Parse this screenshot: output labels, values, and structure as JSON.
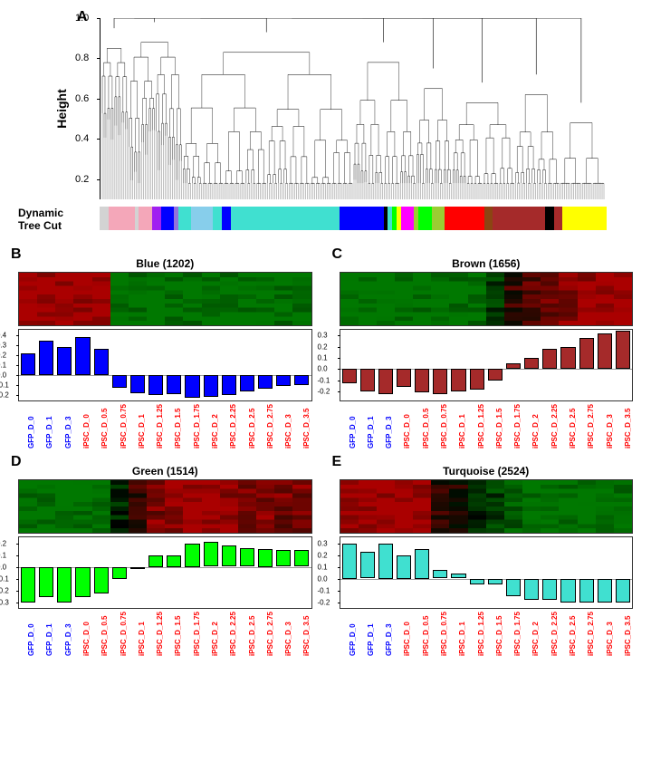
{
  "panelA": {
    "label": "A",
    "y_axis_label": "Height",
    "y_ticks": [
      0.2,
      0.4,
      0.6,
      0.8,
      1.0
    ],
    "y_range": [
      0.1,
      1.0
    ],
    "tree_cut_label": "Dynamic\nTree Cut",
    "tree_cut_segments": [
      {
        "color": "#d3d3d3",
        "width": 2
      },
      {
        "color": "#f4a7b9",
        "width": 6
      },
      {
        "color": "#d3d3d3",
        "width": 1
      },
      {
        "color": "#f4a7b9",
        "width": 3
      },
      {
        "color": "#a020f0",
        "width": 2
      },
      {
        "color": "#0000ff",
        "width": 3
      },
      {
        "color": "#9370db",
        "width": 1
      },
      {
        "color": "#40e0d0",
        "width": 3
      },
      {
        "color": "#87ceeb",
        "width": 5
      },
      {
        "color": "#40e0d0",
        "width": 2
      },
      {
        "color": "#0000ff",
        "width": 2
      },
      {
        "color": "#40e0d0",
        "width": 25
      },
      {
        "color": "#0000ff",
        "width": 10
      },
      {
        "color": "#000000",
        "width": 1
      },
      {
        "color": "#40e0d0",
        "width": 1
      },
      {
        "color": "#00ff00",
        "width": 1
      },
      {
        "color": "#ffff00",
        "width": 1
      },
      {
        "color": "#ff00ff",
        "width": 3
      },
      {
        "color": "#9acd32",
        "width": 1
      },
      {
        "color": "#00ff00",
        "width": 3
      },
      {
        "color": "#9acd32",
        "width": 3
      },
      {
        "color": "#ff0000",
        "width": 9
      },
      {
        "color": "#8b4513",
        "width": 2
      },
      {
        "color": "#a52a2a",
        "width": 12
      },
      {
        "color": "#000000",
        "width": 2
      },
      {
        "color": "#a52a2a",
        "width": 2
      },
      {
        "color": "#ffff00",
        "width": 10
      }
    ]
  },
  "samples": [
    {
      "label": "GFP_D_0",
      "type": "gfp"
    },
    {
      "label": "GFP_D_1",
      "type": "gfp"
    },
    {
      "label": "GFP_D_3",
      "type": "gfp"
    },
    {
      "label": "iPSC_D_0",
      "type": "ipsc"
    },
    {
      "label": "iPSC_D_0.5",
      "type": "ipsc"
    },
    {
      "label": "iPSC_D_0.75",
      "type": "ipsc"
    },
    {
      "label": "iPSC_D_1",
      "type": "ipsc"
    },
    {
      "label": "iPSC_D_1.25",
      "type": "ipsc"
    },
    {
      "label": "iPSC_D_1.5",
      "type": "ipsc"
    },
    {
      "label": "iPSC_D_1.75",
      "type": "ipsc"
    },
    {
      "label": "iPSC_D_2",
      "type": "ipsc"
    },
    {
      "label": "iPSC_D_2.25",
      "type": "ipsc"
    },
    {
      "label": "iPSC_D_2.5",
      "type": "ipsc"
    },
    {
      "label": "iPSC_D_2.75",
      "type": "ipsc"
    },
    {
      "label": "iPSC_D_3",
      "type": "ipsc"
    },
    {
      "label": "iPSC_D_3.5",
      "type": "ipsc"
    }
  ],
  "sample_colors": {
    "gfp": "#0000ff",
    "ipsc": "#ff0000"
  },
  "modules": [
    {
      "id": "B",
      "title": "Blue (1202)",
      "bar_color": "#0000ff",
      "y_ticks": [
        -0.2,
        -0.1,
        0,
        0.1,
        0.2,
        0.3,
        0.4
      ],
      "y_range": [
        -0.25,
        0.45
      ],
      "values": [
        0.22,
        0.34,
        0.28,
        0.38,
        0.26,
        -0.12,
        -0.18,
        -0.2,
        -0.19,
        -0.22,
        -0.21,
        -0.2,
        -0.16,
        -0.13,
        -0.11,
        -0.1
      ],
      "heatmap_bias": [
        1,
        1,
        1,
        1,
        1,
        -1,
        -1,
        -1,
        -1,
        -1,
        -1,
        -1,
        -1,
        -1,
        -1,
        -1
      ]
    },
    {
      "id": "C",
      "title": "Brown (1656)",
      "bar_color": "#a52a2a",
      "y_ticks": [
        -0.2,
        -0.1,
        0,
        0.1,
        0.2,
        0.3
      ],
      "y_range": [
        -0.28,
        0.35
      ],
      "values": [
        -0.13,
        -0.2,
        -0.22,
        -0.16,
        -0.21,
        -0.22,
        -0.2,
        -0.18,
        -0.1,
        0.05,
        0.1,
        0.18,
        0.2,
        0.28,
        0.32,
        0.34
      ],
      "heatmap_bias": [
        -1,
        -1,
        -1,
        -1,
        -1,
        -1,
        -1,
        -1,
        -0.5,
        0.3,
        0.5,
        0.7,
        0.8,
        0.9,
        1,
        1
      ]
    },
    {
      "id": "D",
      "title": "Green (1514)",
      "bar_color": "#00ff00",
      "y_ticks": [
        -0.3,
        -0.2,
        -0.1,
        0,
        0.1,
        0.2
      ],
      "y_range": [
        -0.35,
        0.25
      ],
      "values": [
        -0.3,
        -0.26,
        -0.3,
        -0.26,
        -0.23,
        -0.1,
        -0.02,
        0.1,
        0.1,
        0.2,
        0.21,
        0.18,
        0.16,
        0.15,
        0.14,
        0.14
      ],
      "heatmap_bias": [
        -1,
        -1,
        -1,
        -1,
        -1,
        -0.3,
        0.3,
        0.7,
        0.8,
        1,
        1,
        0.9,
        0.8,
        0.8,
        0.7,
        0.7
      ]
    },
    {
      "id": "E",
      "title": "Turquoise (2524)",
      "bar_color": "#40e0d0",
      "y_ticks": [
        -0.2,
        -0.1,
        0,
        0.1,
        0.2,
        0.3
      ],
      "y_range": [
        -0.25,
        0.35
      ],
      "values": [
        0.3,
        0.23,
        0.3,
        0.2,
        0.25,
        0.07,
        0.04,
        -0.05,
        -0.05,
        -0.15,
        -0.18,
        -0.18,
        -0.2,
        -0.2,
        -0.2,
        -0.2
      ],
      "heatmap_bias": [
        1,
        1,
        1,
        1,
        1,
        0.2,
        0.1,
        -0.3,
        -0.5,
        -0.8,
        -1,
        -1,
        -1,
        -1,
        -1,
        -1
      ]
    }
  ],
  "heatmap_colors": {
    "pos": "#aa0000",
    "neg": "#006600",
    "mid": "#000000"
  }
}
